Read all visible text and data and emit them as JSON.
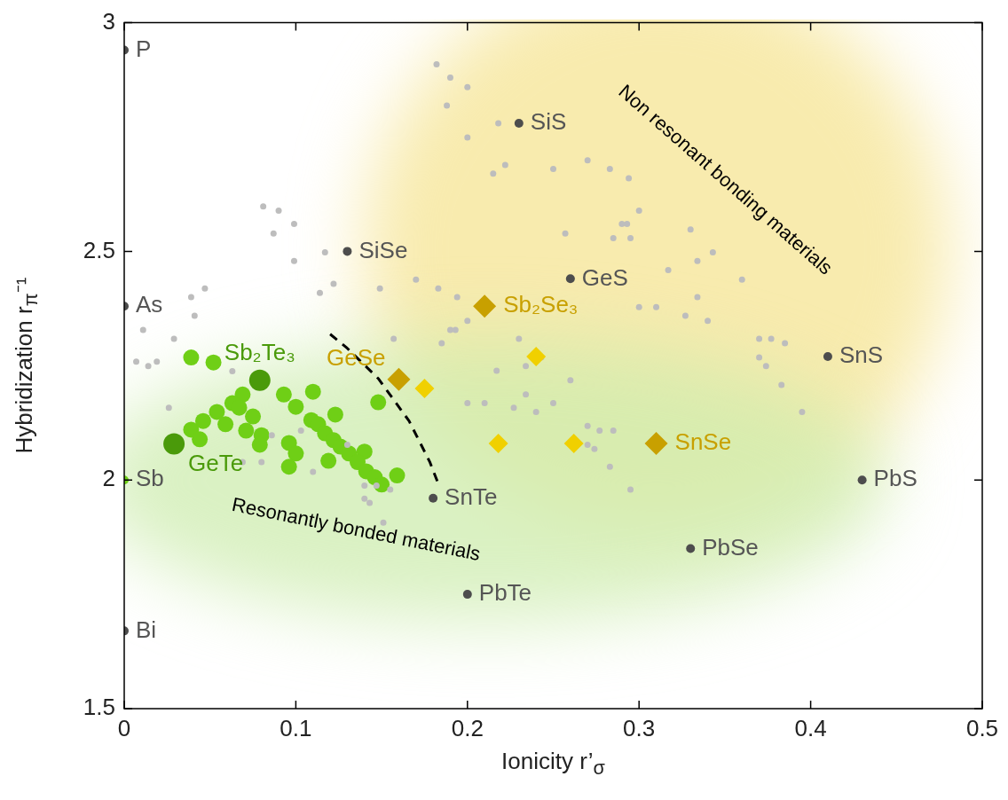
{
  "chart_data": {
    "type": "scatter",
    "xlabel": "Ionicity r’$_{σ}$",
    "ylabel": "Hybridization r$_{π}$⁻¹",
    "xlim": [
      0,
      0.5
    ],
    "xticks": [
      0,
      0.1,
      0.2,
      0.3,
      0.4,
      0.5
    ],
    "ylim": [
      1.5,
      3
    ],
    "yticks": [
      1.5,
      2,
      2.5,
      3
    ],
    "grid": false,
    "legend": false,
    "annotations": [
      "Non resonant bonding materials",
      "Resonantly bonded materials"
    ],
    "series": [
      {
        "type": "line",
        "color": "#000000",
        "line_style": "dashed",
        "marker": "none",
        "x": [
          0.12,
          0.13,
          0.148,
          0.166,
          0.178,
          0.183
        ],
        "values": [
          2.319,
          2.288,
          2.222,
          2.129,
          2.04,
          1.992
        ]
      },
      {
        "color": "#6fcf16",
        "marker": "circle",
        "x": [
          0.039,
          0.052,
          0.069,
          0.063,
          0.067,
          0.054,
          0.046,
          0.039,
          0.044,
          0.059,
          0.075,
          0.071,
          0.08,
          0.079,
          0.093,
          0.1,
          0.11,
          0.123,
          0.109,
          0.113,
          0.117,
          0.122,
          0.126,
          0.131,
          0.14,
          0.136,
          0.141,
          0.146,
          0.15,
          0.159,
          0.148,
          0.096,
          0.1,
          0.096,
          0.119
        ],
        "values": [
          2.268,
          2.257,
          2.187,
          2.168,
          2.158,
          2.149,
          2.129,
          2.11,
          2.089,
          2.122,
          2.139,
          2.108,
          2.098,
          2.077,
          2.187,
          2.16,
          2.193,
          2.143,
          2.131,
          2.122,
          2.102,
          2.087,
          2.073,
          2.058,
          2.062,
          2.039,
          2.019,
          2.006,
          1.99,
          2.01,
          2.17,
          2.081,
          2.058,
          2.029,
          2.042
        ]
      },
      {
        "color": "#4a9a0a",
        "marker": "circle",
        "x": [
          0.029,
          0.079
        ],
        "values": [
          2.079,
          2.218
        ],
        "value_labels": [
          "GeTe",
          "Sb₂Te₃"
        ]
      },
      {
        "color": "#bdbdbd",
        "marker": "circle",
        "x": [
          0.182,
          0.19,
          0.2,
          0.188,
          0.218,
          0.2,
          0.222,
          0.215,
          0.081,
          0.09,
          0.099,
          0.087,
          0.117,
          0.099,
          0.122,
          0.114,
          0.149,
          0.17,
          0.183,
          0.194,
          0.047,
          0.039,
          0.27,
          0.25,
          0.283,
          0.294,
          0.3,
          0.29,
          0.293,
          0.257,
          0.285,
          0.295,
          0.33,
          0.343,
          0.334,
          0.317,
          0.36,
          0.334,
          0.2,
          0.19,
          0.193,
          0.157,
          0.185,
          0.23,
          0.243,
          0.217,
          0.234,
          0.26,
          0.2,
          0.21,
          0.227,
          0.234,
          0.24,
          0.25,
          0.3,
          0.31,
          0.327,
          0.34,
          0.37,
          0.377,
          0.385,
          0.37,
          0.374,
          0.383,
          0.395,
          0.27,
          0.277,
          0.285,
          0.27,
          0.274,
          0.283,
          0.295,
          0.13,
          0.14,
          0.147,
          0.155,
          0.14,
          0.143,
          0.011,
          0.029,
          0.007,
          0.014,
          0.019,
          0.063,
          0.026,
          0.103,
          0.086,
          0.11,
          0.08,
          0.069,
          0.041,
          0.151
        ],
        "values": [
          2.909,
          2.88,
          2.859,
          2.819,
          2.78,
          2.749,
          2.689,
          2.67,
          2.598,
          2.589,
          2.56,
          2.539,
          2.498,
          2.479,
          2.429,
          2.409,
          2.419,
          2.438,
          2.419,
          2.4,
          2.419,
          2.4,
          2.699,
          2.68,
          2.68,
          2.66,
          2.589,
          2.56,
          2.56,
          2.539,
          2.529,
          2.529,
          2.548,
          2.498,
          2.479,
          2.459,
          2.438,
          2.4,
          2.348,
          2.328,
          2.328,
          2.309,
          2.299,
          2.309,
          2.268,
          2.239,
          2.249,
          2.218,
          2.168,
          2.168,
          2.158,
          2.187,
          2.149,
          2.168,
          2.378,
          2.378,
          2.359,
          2.348,
          2.309,
          2.309,
          2.299,
          2.268,
          2.249,
          2.208,
          2.149,
          2.118,
          2.108,
          2.108,
          2.077,
          2.068,
          2.029,
          1.979,
          2.077,
          1.988,
          1.988,
          1.979,
          1.959,
          1.95,
          2.328,
          2.309,
          2.259,
          2.249,
          2.259,
          2.238,
          2.158,
          2.108,
          2.098,
          2.018,
          2.039,
          2.039,
          2.359,
          1.907
        ]
      },
      {
        "color": "#555555",
        "colors": [
          "#4d4d4d",
          "#4d4d4d",
          "#6fcf16",
          "#4d4d4d",
          "#4d4d4d",
          "#4d4d4d",
          "#4d4d4d",
          "#4d4d4d",
          "#4d4d4d",
          "#4d4d4d",
          "#4d4d4d",
          "#4d4d4d"
        ],
        "marker": "circle",
        "x": [
          0,
          0,
          0,
          0,
          0.13,
          0.23,
          0.26,
          0.41,
          0.43,
          0.33,
          0.2,
          0.18
        ],
        "values": [
          2.94,
          2.38,
          2.0,
          1.67,
          2.5,
          2.78,
          2.44,
          2.27,
          2.0,
          1.85,
          1.75,
          1.96
        ],
        "value_labels": [
          "P",
          "As",
          "Sb",
          "Bi",
          "SiSe",
          "SiS",
          "GeS",
          "SnS",
          "PbS",
          "PbSe",
          "PbTe",
          "SnTe"
        ]
      },
      {
        "color": "#f0d000",
        "marker": "diamond",
        "x": [
          0.175,
          0.24,
          0.218,
          0.262
        ],
        "values": [
          2.2,
          2.27,
          2.08,
          2.08
        ]
      },
      {
        "color": "#c8a000",
        "marker": "diamond",
        "x": [
          0.16,
          0.21,
          0.31
        ],
        "values": [
          2.22,
          2.38,
          2.08
        ],
        "value_labels": [
          "GeSe",
          "Sb₂Se₃",
          "SnSe"
        ]
      }
    ]
  }
}
